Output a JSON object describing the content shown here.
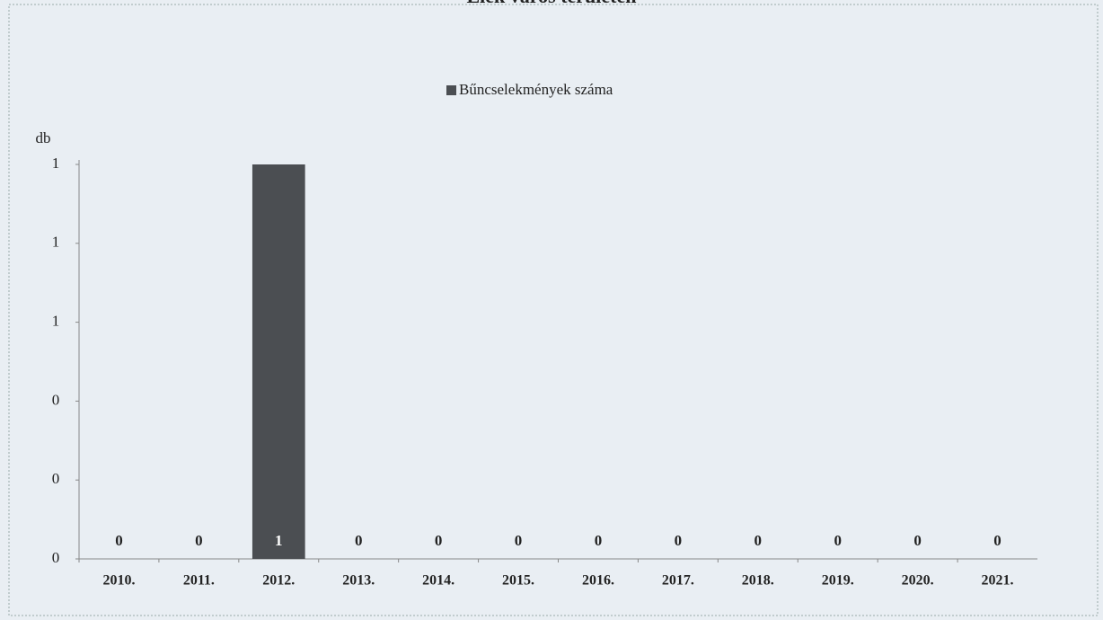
{
  "chart_data": {
    "type": "bar",
    "title": "Elek város területén",
    "y_label": "db",
    "categories": [
      "2010.",
      "2011.",
      "2012.",
      "2013.",
      "2014.",
      "2015.",
      "2016.",
      "2017.",
      "2018.",
      "2019.",
      "2020.",
      "2021."
    ],
    "series": [
      {
        "name": "Bűncselekmények száma",
        "color": "#4b4e52",
        "values": [
          0,
          0,
          1,
          0,
          0,
          0,
          0,
          0,
          0,
          0,
          0,
          0
        ]
      }
    ],
    "ylim": [
      0,
      1
    ],
    "yticks": [
      {
        "value": 0,
        "label": "0"
      },
      {
        "value": 0.2,
        "label": "0"
      },
      {
        "value": 0.4,
        "label": "0"
      },
      {
        "value": 0.6,
        "label": "1"
      },
      {
        "value": 0.8,
        "label": "1"
      },
      {
        "value": 1,
        "label": "1"
      }
    ],
    "legend": "top",
    "grid": false
  }
}
